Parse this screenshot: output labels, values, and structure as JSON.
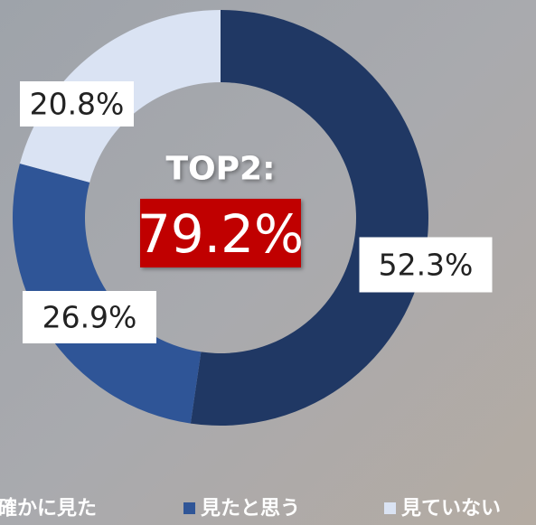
{
  "chart_data": {
    "type": "pie",
    "donut": true,
    "categories": [
      "確かに見た",
      "見たと思う",
      "見ていない"
    ],
    "values": [
      52.3,
      26.9,
      20.8
    ],
    "value_labels": [
      "52.3%",
      "26.9%",
      "20.8%"
    ],
    "colors": [
      "#203864",
      "#2f5597",
      "#dae3f3"
    ],
    "center_label": "TOP2:",
    "center_value": "79.2%",
    "legend": "bottom"
  }
}
